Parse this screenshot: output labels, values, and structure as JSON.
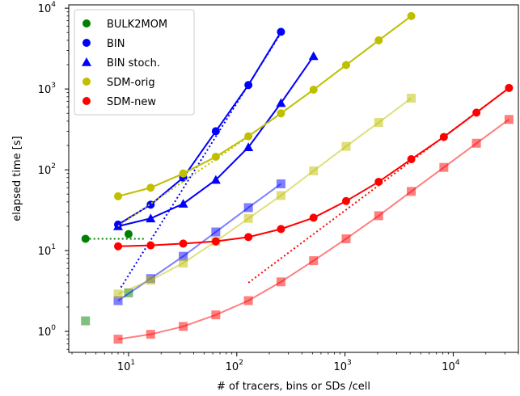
{
  "chart_data": {
    "type": "line",
    "title": "",
    "xlabel": "# of tracers, bins or SDs /cell",
    "ylabel": "elapsed time [s]",
    "x_scale": "log",
    "y_scale": "log",
    "xlim": [
      2.8,
      40000
    ],
    "ylim": [
      0.55,
      11000
    ],
    "grid": false,
    "legend_position": "top-left",
    "x_ticks": [
      {
        "value": 10,
        "base": "10",
        "exp": "1"
      },
      {
        "value": 100,
        "base": "10",
        "exp": "2"
      },
      {
        "value": 1000,
        "base": "10",
        "exp": "3"
      },
      {
        "value": 10000,
        "base": "10",
        "exp": "4"
      }
    ],
    "y_ticks": [
      {
        "value": 1,
        "base": "10",
        "exp": "0"
      },
      {
        "value": 10,
        "base": "10",
        "exp": "1"
      },
      {
        "value": 100,
        "base": "10",
        "exp": "2"
      },
      {
        "value": 1000,
        "base": "10",
        "exp": "3"
      },
      {
        "value": 10000,
        "base": "10",
        "exp": "4"
      }
    ],
    "legend": [
      {
        "label": "BULK2MOM",
        "color": "#008000",
        "marker": "circle"
      },
      {
        "label": "BIN",
        "color": "#0000ff",
        "marker": "circle"
      },
      {
        "label": "BIN stoch.",
        "color": "#0000ff",
        "marker": "triangle"
      },
      {
        "label": "SDM-orig",
        "color": "#bfbf00",
        "marker": "circle"
      },
      {
        "label": "SDM-new",
        "color": "#ff0000",
        "marker": "circle"
      }
    ],
    "series": [
      {
        "color": "#008000",
        "marker": "circle",
        "line": "none",
        "opacity": 1,
        "x": [
          4,
          10
        ],
        "y": [
          14,
          16
        ]
      },
      {
        "color": "#008000",
        "marker": "none",
        "line": "dotted",
        "opacity": 1,
        "x": [
          4,
          14
        ],
        "y": [
          14,
          14
        ]
      },
      {
        "color": "#008000",
        "marker": "square",
        "line": "none",
        "opacity": 0.5,
        "x": [
          4,
          10
        ],
        "y": [
          1.35,
          3.0
        ]
      },
      {
        "color": "#0000ff",
        "marker": "circle",
        "line": "solid",
        "opacity": 1,
        "x": [
          8,
          16,
          32,
          64,
          128,
          256
        ],
        "y": [
          21,
          37,
          80,
          300,
          1120,
          5100
        ]
      },
      {
        "color": "#0000ff",
        "marker": "triangle",
        "line": "solid",
        "opacity": 1,
        "x": [
          8,
          16,
          32,
          64,
          128,
          256,
          512
        ],
        "y": [
          20,
          25,
          38,
          75,
          190,
          670,
          2550
        ]
      },
      {
        "color": "#0000ff",
        "marker": "none",
        "line": "dotted",
        "opacity": 1,
        "x": [
          8.5,
          260
        ],
        "y": [
          3.5,
          5100
        ]
      },
      {
        "color": "#0000ff",
        "marker": "square",
        "line": "solid",
        "opacity": 0.5,
        "x": [
          8,
          16,
          32,
          64,
          128,
          256
        ],
        "y": [
          2.4,
          4.5,
          8.5,
          17,
          34,
          67
        ]
      },
      {
        "color": "#bfbf00",
        "marker": "circle",
        "line": "solid",
        "opacity": 1,
        "x": [
          8,
          16,
          32,
          64,
          128,
          256,
          512,
          1024,
          2048,
          4096
        ],
        "y": [
          47,
          60,
          90,
          145,
          260,
          500,
          980,
          1980,
          4000,
          8000
        ]
      },
      {
        "color": "#bfbf00",
        "marker": "none",
        "line": "dotted",
        "opacity": 1,
        "x": [
          8,
          130
        ],
        "y": [
          20,
          260
        ]
      },
      {
        "color": "#bfbf00",
        "marker": "square",
        "line": "solid",
        "opacity": 0.5,
        "x": [
          8,
          16,
          32,
          64,
          128,
          256,
          512,
          1024,
          2048,
          4096
        ],
        "y": [
          2.9,
          4.3,
          7.0,
          13,
          25,
          48,
          97,
          195,
          385,
          770
        ]
      },
      {
        "color": "#ff0000",
        "marker": "circle",
        "line": "solid",
        "opacity": 1,
        "x": [
          8,
          16,
          32,
          64,
          128,
          256,
          512,
          1024,
          2048,
          4096,
          8192,
          16384,
          32768
        ],
        "y": [
          11.3,
          11.6,
          12.2,
          13,
          14.7,
          18.5,
          25.5,
          41,
          71,
          135,
          255,
          510,
          1030
        ]
      },
      {
        "color": "#ff0000",
        "marker": "none",
        "line": "dotted",
        "opacity": 1,
        "x": [
          128,
          32768
        ],
        "y": [
          4.0,
          1030
        ]
      },
      {
        "color": "#ff0000",
        "marker": "square",
        "line": "solid",
        "opacity": 0.5,
        "x": [
          8,
          16,
          32,
          64,
          128,
          256,
          512,
          1024,
          2048,
          4096,
          8192,
          16384,
          32768
        ],
        "y": [
          0.8,
          0.92,
          1.15,
          1.6,
          2.4,
          4.1,
          7.5,
          14,
          27,
          54,
          107,
          213,
          420
        ]
      }
    ]
  }
}
